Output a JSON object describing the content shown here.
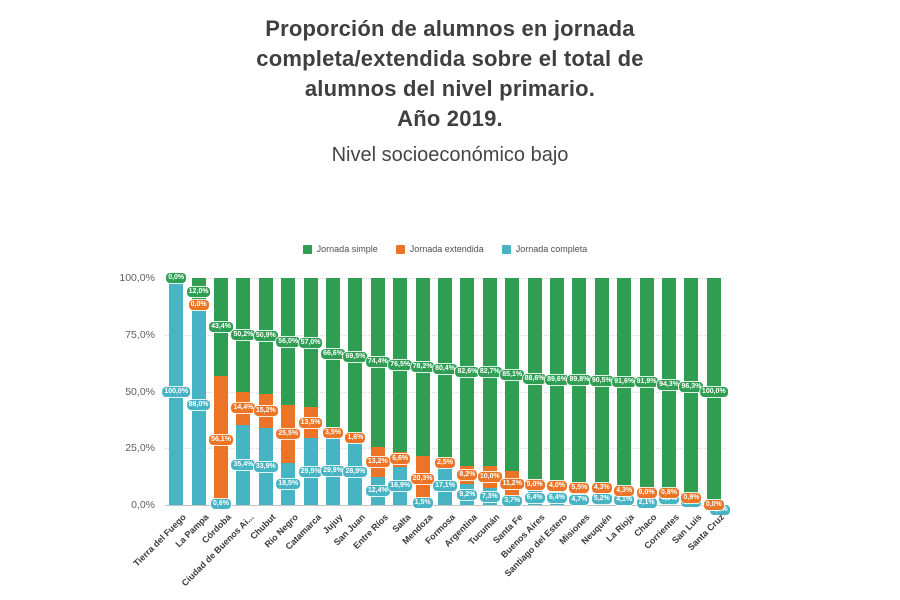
{
  "title": {
    "lines": [
      "Proporción de alumnos en jornada",
      "completa/extendida sobre el total de",
      "alumnos del nivel primario.",
      "Año 2019."
    ],
    "subtitle": "Nivel socioeconómico bajo"
  },
  "legend": {
    "items": [
      {
        "label": "Jornada simple",
        "color": "#2F9E52"
      },
      {
        "label": "Jornada extendida",
        "color": "#EC7426"
      },
      {
        "label": "Jornada completa",
        "color": "#47B4C4"
      }
    ]
  },
  "chart_data": {
    "type": "bar",
    "stacked": true,
    "ylim": [
      0,
      100
    ],
    "grid": true,
    "legend_position": "top",
    "yticks": [
      "100,0%",
      "75,0%",
      "50,0%",
      "25,0%",
      "0,0%"
    ],
    "categories": [
      "Tierra del Fuego",
      "La Pampa",
      "Córdoba",
      "Ciudad de Buenos Ai...",
      "Chubut",
      "Río Negro",
      "Catamarca",
      "Jujuy",
      "San Juan",
      "Entre Ríos",
      "Salta",
      "Mendoza",
      "Formosa",
      "Argentina",
      "Tucumán",
      "Santa Fe",
      "Buenos Aires",
      "Santiago del Estero",
      "Misiones",
      "Neuquén",
      "La Rioja",
      "Chaco",
      "Corrientes",
      "San Luis",
      "Santa Cruz"
    ],
    "series": [
      {
        "name": "Jornada simple",
        "color": "#2F9E52",
        "values": [
          0.0,
          12.0,
          43.4,
          50.2,
          50.9,
          56.0,
          57.0,
          66.6,
          69.5,
          74.4,
          76.5,
          78.2,
          80.4,
          82.6,
          82.7,
          85.1,
          88.6,
          89.6,
          89.8,
          90.5,
          91.6,
          91.9,
          94.3,
          96.3,
          100.0
        ],
        "labels": [
          "0,0%",
          "12,0%",
          "43,4%",
          "50,2%",
          "50,9%",
          "56,0%",
          "57,0%",
          "66,6%",
          "69,5%",
          "74,4%",
          "76,5%",
          "78,2%",
          "80,4%",
          "82,6%",
          "82,7%",
          "85,1%",
          "88,6%",
          "89,6%",
          "89,8%",
          "90,5%",
          "91,6%",
          "91,9%",
          "94,3%",
          "96,3%",
          "100,0%"
        ]
      },
      {
        "name": "Jornada extendida",
        "color": "#EC7426",
        "values": [
          0.0,
          0.0,
          56.1,
          14.4,
          15.2,
          25.5,
          13.5,
          3.5,
          1.6,
          13.2,
          6.6,
          20.3,
          2.5,
          8.2,
          10.0,
          11.2,
          5.0,
          4.0,
          5.5,
          4.3,
          4.3,
          6.0,
          0.8,
          0.9,
          0.0
        ],
        "labels": [
          "",
          "0,0%",
          "56,1%",
          "14,4%",
          "15,2%",
          "25,5%",
          "13,5%",
          "3,5%",
          "1,6%",
          "13,2%",
          "6,6%",
          "20,3%",
          "2,5%",
          "8,2%",
          "10,0%",
          "11,2%",
          "5,0%",
          "4,0%",
          "5,5%",
          "4,3%",
          "4,3%",
          "6,0%",
          "0,8%",
          "0,9%",
          "0,0%"
        ]
      },
      {
        "name": "Jornada completa",
        "color": "#47B4C4",
        "values": [
          100.0,
          88.0,
          0.6,
          35.4,
          33.9,
          18.5,
          29.5,
          29.9,
          28.9,
          12.4,
          16.9,
          1.5,
          17.1,
          9.2,
          7.3,
          3.7,
          6.4,
          6.4,
          4.7,
          5.2,
          4.1,
          2.1,
          4.9,
          2.8,
          0.0
        ],
        "labels": [
          "100,0%",
          "88,0%",
          "0,6%",
          "35,4%",
          "33,9%",
          "18,5%",
          "29,5%",
          "29,9%",
          "28,9%",
          "12,4%",
          "16,9%",
          "1,5%",
          "17,1%",
          "9,2%",
          "7,3%",
          "3,7%",
          "6,4%",
          "6,4%",
          "4,7%",
          "5,2%",
          "4,1%",
          "2,1%",
          "4,9%",
          "2,8%",
          "0,0%"
        ]
      }
    ]
  }
}
